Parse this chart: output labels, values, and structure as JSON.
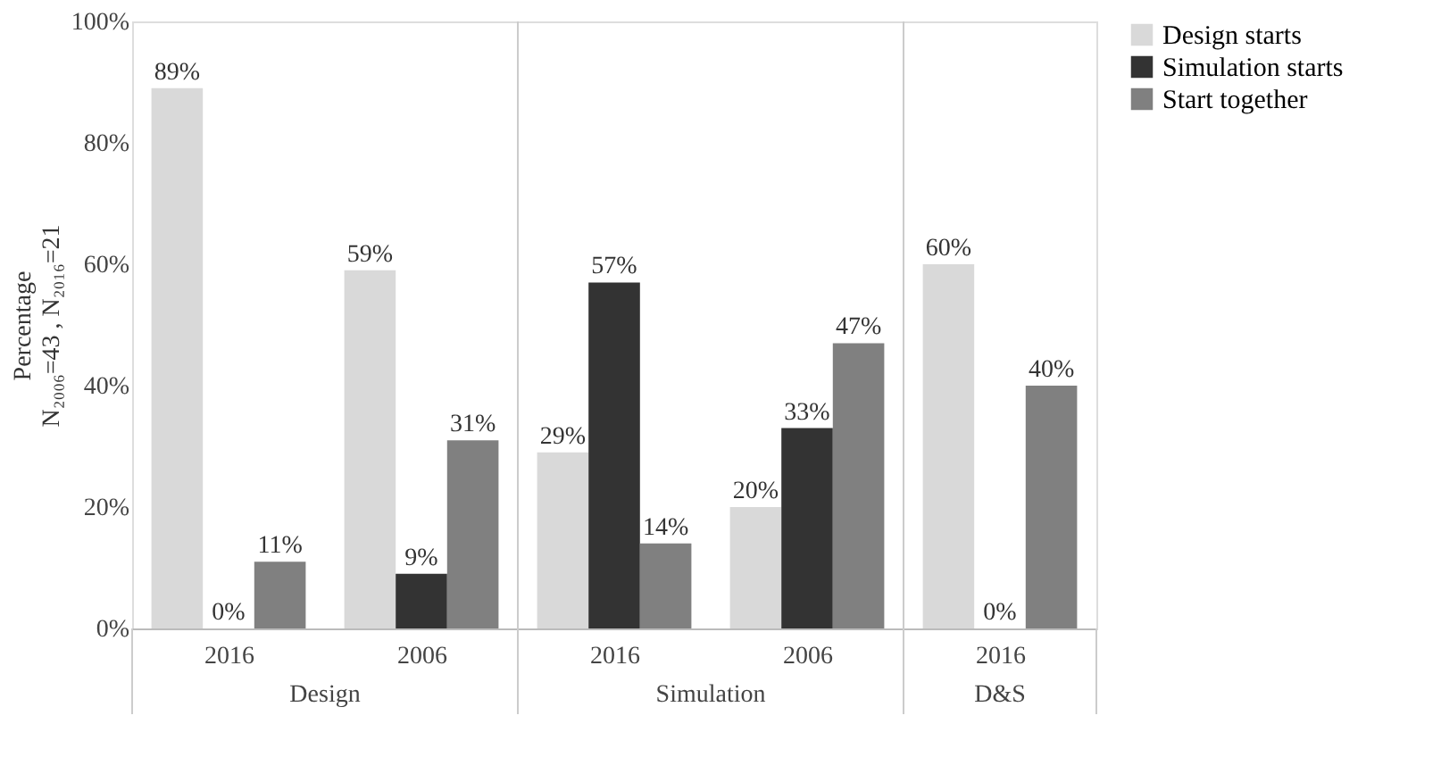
{
  "chart_data": {
    "type": "bar",
    "ylabel": "Percentage\nN₂₀₀₆=43 , N₂₀₁₆=21",
    "categories": [
      "2016",
      "2006",
      "2016",
      "2006",
      "2016"
    ],
    "annotations": [
      "Design",
      "Simulation",
      "D&S"
    ],
    "series": [
      {
        "name": "Design starts",
        "color": "#d9d9d9",
        "values": [
          89,
          59,
          29,
          20,
          60
        ],
        "value_labels": [
          "89%",
          "59%",
          "29%",
          "20%",
          "60%"
        ]
      },
      {
        "name": "Simulation starts",
        "color": "#333333",
        "values": [
          0,
          9,
          57,
          33,
          0
        ],
        "value_labels": [
          "0%",
          "9%",
          "57%",
          "33%",
          "0%"
        ]
      },
      {
        "name": "Start together",
        "color": "#808080",
        "values": [
          11,
          31,
          14,
          47,
          40
        ],
        "value_labels": [
          "11%",
          "31%",
          "14%",
          "47%",
          "40%"
        ]
      }
    ],
    "ylim": [
      0,
      100
    ],
    "yticks": [
      {
        "value": 0,
        "label": "0%"
      },
      {
        "value": 20,
        "label": "20%"
      },
      {
        "value": 40,
        "label": "40%"
      },
      {
        "value": 60,
        "label": "60%"
      },
      {
        "value": 80,
        "label": "80%"
      },
      {
        "value": 100,
        "label": "100%"
      }
    ],
    "legend": "right",
    "grid": false
  }
}
